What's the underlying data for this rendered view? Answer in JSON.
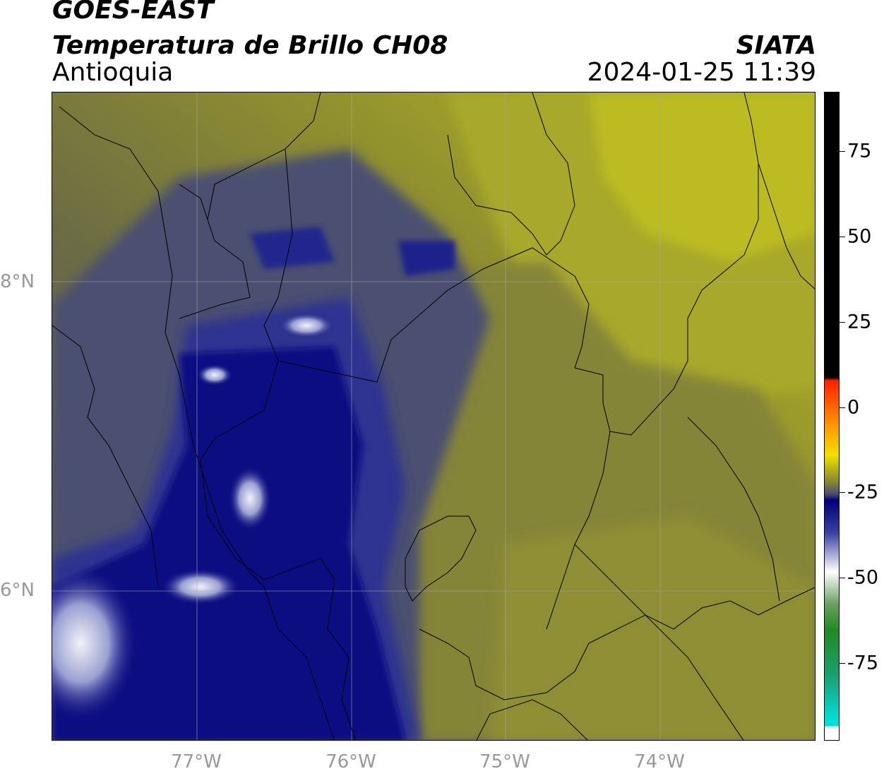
{
  "header": {
    "title_line1": "GOES-EAST",
    "title_line2": "Temperatura de Brillo CH08",
    "region": "Antioquia",
    "organization": "SIATA",
    "datetime": "2024-01-25 11:39"
  },
  "map": {
    "lat_labels": [
      "8°N",
      "6°N"
    ],
    "lon_labels": [
      "77°W",
      "76°W",
      "75°W",
      "74°W"
    ],
    "palette": {
      "deep_blue": "#0a0a80",
      "mid_blue": "#30348a",
      "slate": "#4a4f6e",
      "olive_dark": "#6e6d3e",
      "olive": "#8a8a30",
      "yellow_olive": "#b4b424",
      "white_cloud": "#e8e8f4"
    }
  },
  "colorbar": {
    "ticks": [
      "75",
      "50",
      "25",
      "0",
      "-25",
      "-50",
      "-75"
    ],
    "colors": {
      "black": "#000000",
      "red": "#ff2000",
      "orange": "#ff9000",
      "yellow": "#f0e000",
      "olive": "#8a8a30",
      "navy": "#00007a",
      "white": "#ffffff",
      "green": "#228a22",
      "cyan": "#00e0d8"
    }
  }
}
